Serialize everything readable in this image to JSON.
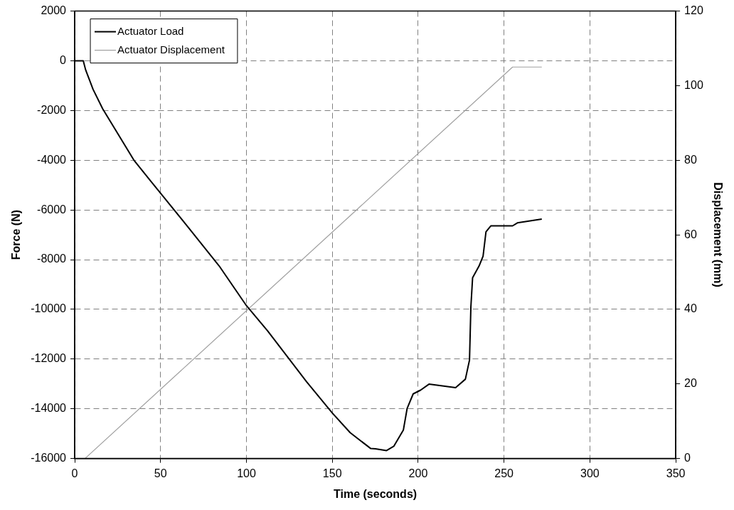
{
  "chart_data": {
    "type": "line",
    "xlabel": "Time (seconds)",
    "ylabel": "Force (N)",
    "y2label": "Displacement (mm)",
    "xlim": [
      0,
      350
    ],
    "xticks": [
      0,
      50,
      100,
      150,
      200,
      250,
      300,
      350
    ],
    "ylim": [
      -16000,
      2000
    ],
    "yticks": [
      -16000,
      -14000,
      -12000,
      -10000,
      -8000,
      -6000,
      -4000,
      -2000,
      0,
      2000
    ],
    "y2lim": [
      0,
      120
    ],
    "y2ticks": [
      0,
      20,
      40,
      60,
      80,
      100,
      120
    ],
    "grid": true,
    "legend": "top left",
    "marker": "none",
    "line_style": "solid",
    "series": [
      {
        "name": "Actuator Load",
        "color": "#000000",
        "x": [
          0,
          5,
          6.4,
          10.7,
          16.3,
          34.7,
          50,
          67.2,
          84.1,
          100,
          112.4,
          135,
          150,
          160.4,
          172.4,
          175.2,
          181.6,
          185.8,
          191.4,
          193.6,
          197.1,
          201.4,
          206.3,
          214.1,
          221.8,
          227.5,
          229.9,
          230.7,
          231.7,
          235.5,
          237.8,
          239.5,
          242.3,
          255,
          257.8,
          272
        ],
        "values": [
          0,
          0,
          -370,
          -1150,
          -1930,
          -4020,
          -5330,
          -6790,
          -8250,
          -9850,
          -10870,
          -12910,
          -14170,
          -14960,
          -15600,
          -15610,
          -15680,
          -15510,
          -14850,
          -13980,
          -13400,
          -13250,
          -13010,
          -13080,
          -13150,
          -12810,
          -12040,
          -9900,
          -8730,
          -8250,
          -7860,
          -6880,
          -6640,
          -6640,
          -6520,
          -6370
        ]
      },
      {
        "name": "Actuator Displacement",
        "color": "#a0a0a0",
        "axis": "y2",
        "x": [
          6,
          255,
          272
        ],
        "values": [
          0,
          105,
          105
        ]
      }
    ]
  }
}
